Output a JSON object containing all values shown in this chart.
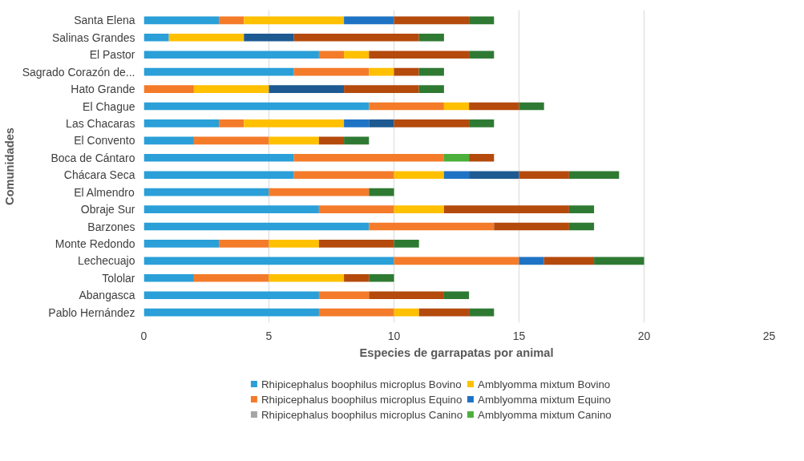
{
  "chart_data": {
    "type": "bar",
    "orientation": "horizontal",
    "stacked": true,
    "xlabel": "Especies de garrapatas por animal",
    "ylabel": "Comunidades",
    "categories": [
      "Santa Elena",
      "Salinas Grandes",
      "El Pastor",
      "Sagrado Corazón de...",
      "Hato Grande",
      "El Chague",
      "Las Chacaras",
      "El Convento",
      "Boca de Cántaro",
      "Chácara Seca",
      "El Almendro",
      "Obraje Sur",
      "Barzones",
      "Monte Redondo",
      "Lechecuajo",
      "Tololar",
      "Abangasca",
      "Pablo Hernández"
    ],
    "series": [
      {
        "name": "Rhipicephalus boophilus microplus Bovino",
        "color": "#2a9fd8",
        "values": [
          3,
          1,
          7,
          6,
          0,
          9,
          3,
          2,
          6,
          6,
          5,
          7,
          9,
          3,
          10,
          2,
          7,
          7
        ]
      },
      {
        "name": "Rhipicephalus boophilus microplus Equino",
        "color": "#f47b2a",
        "values": [
          1,
          0,
          1,
          3,
          2,
          3,
          1,
          3,
          6,
          4,
          4,
          3,
          5,
          2,
          5,
          3,
          2,
          3
        ]
      },
      {
        "name": "Rhipicephalus boophilus microplus Canino",
        "color": "#a5a5a5",
        "values": [
          0,
          0,
          0,
          0,
          0,
          0,
          0,
          0,
          0,
          0,
          0,
          0,
          0,
          0,
          0,
          0,
          0,
          0
        ]
      },
      {
        "name": "Amblyomma mixtum Bovino",
        "color": "#ffc000",
        "values": [
          4,
          3,
          1,
          1,
          3,
          1,
          4,
          2,
          0,
          2,
          0,
          2,
          0,
          2,
          0,
          3,
          0,
          1
        ]
      },
      {
        "name": "Amblyomma mixtum Equino",
        "color": "#1f73c4",
        "values": [
          2,
          0,
          0,
          0,
          0,
          0,
          1,
          0,
          0,
          1,
          0,
          0,
          0,
          0,
          1,
          0,
          0,
          0
        ]
      },
      {
        "name": "Amblyomma mixtum Canino",
        "color": "#4caf3c",
        "values": [
          0,
          0,
          0,
          0,
          0,
          0,
          0,
          0,
          1,
          0,
          0,
          0,
          0,
          0,
          0,
          0,
          0,
          0
        ]
      },
      {
        "color": "#1d5a91",
        "values": [
          0,
          2,
          0,
          0,
          3,
          0,
          1,
          0,
          0,
          2,
          0,
          0,
          0,
          0,
          0,
          0,
          0,
          0
        ]
      },
      {
        "color": "#b44a0c",
        "values": [
          3,
          5,
          4,
          1,
          3,
          2,
          3,
          1,
          1,
          2,
          0,
          5,
          3,
          3,
          2,
          1,
          3,
          2
        ]
      },
      {
        "color": "#2f7a33",
        "values": [
          1,
          1,
          1,
          1,
          1,
          1,
          1,
          1,
          0,
          2,
          1,
          1,
          1,
          1,
          2,
          1,
          1,
          1
        ]
      }
    ],
    "xlim": [
      0,
      25
    ],
    "xticks": [
      0,
      5,
      10,
      15,
      20,
      25
    ],
    "grid": "x",
    "legend": "bottom"
  }
}
